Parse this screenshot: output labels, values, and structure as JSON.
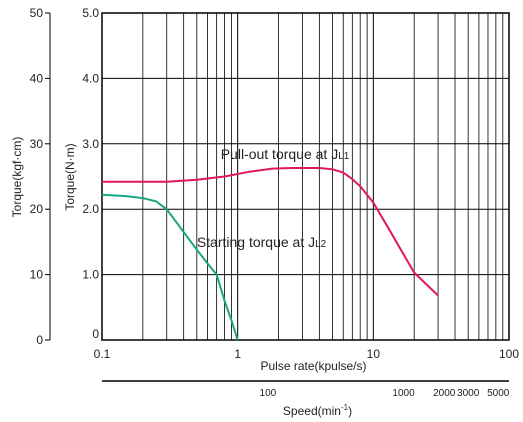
{
  "chart_data": {
    "type": "line",
    "x_scale": "log",
    "xlim": [
      0.1,
      100
    ],
    "ylim": [
      0,
      5.0
    ],
    "grid": true,
    "x_ticks": [
      {
        "value": 0.1,
        "label": "0.1"
      },
      {
        "value": 1,
        "label": "1"
      },
      {
        "value": 10,
        "label": "10"
      },
      {
        "value": 100,
        "label": "100"
      }
    ],
    "y_ticks": [
      {
        "value": 0,
        "label": "0"
      },
      {
        "value": 1.0,
        "label": "1.0"
      },
      {
        "value": 2.0,
        "label": "2.0"
      },
      {
        "value": 3.0,
        "label": "3.0"
      },
      {
        "value": 4.0,
        "label": "4.0"
      },
      {
        "value": 5.0,
        "label": "5.0"
      }
    ],
    "y2_ticks": [
      {
        "value": 0,
        "label": "0"
      },
      {
        "value": 10,
        "label": "10"
      },
      {
        "value": 20,
        "label": "20"
      },
      {
        "value": 30,
        "label": "30"
      },
      {
        "value": 40,
        "label": "40"
      },
      {
        "value": 50,
        "label": "50"
      }
    ],
    "speed_ticks": [
      {
        "pulse_rate": 1.67,
        "label": "100"
      },
      {
        "pulse_rate": 16.7,
        "label": "1000"
      },
      {
        "pulse_rate": 33.3,
        "label": "2000"
      },
      {
        "pulse_rate": 50,
        "label": "3000"
      },
      {
        "pulse_rate": 83.3,
        "label": "5000"
      }
    ],
    "xlabel": "Pulse rate(kpulse/s)",
    "ylabel": {
      "main": "Torque(N·m)"
    },
    "y2label": {
      "main": "Torque(kgf·cm)"
    },
    "speed_label": {
      "main": "Speed(min",
      "sup": "-1",
      "tail": ")"
    },
    "series": [
      {
        "color": "#e0185a",
        "x": [
          0.1,
          0.2,
          0.3,
          0.5,
          0.8,
          1.2,
          1.8,
          2.5,
          4,
          5,
          6,
          7,
          8,
          10,
          13,
          20,
          30
        ],
        "y": [
          2.42,
          2.42,
          2.42,
          2.45,
          2.5,
          2.57,
          2.62,
          2.63,
          2.63,
          2.61,
          2.56,
          2.46,
          2.35,
          2.1,
          1.7,
          1.03,
          0.68
        ]
      },
      {
        "color": "#1aa585",
        "x": [
          0.1,
          0.15,
          0.2,
          0.25,
          0.3,
          0.4,
          0.5,
          0.6,
          0.7,
          0.8,
          0.9,
          1.0
        ],
        "y": [
          2.22,
          2.2,
          2.17,
          2.12,
          2.0,
          1.65,
          1.38,
          1.17,
          1.0,
          0.6,
          0.3,
          0.0
        ]
      }
    ],
    "annotations": [
      {
        "main": "Pull-out torque at J",
        "sub": "L1",
        "x": 0.75,
        "y": 2.77
      },
      {
        "main": "Starting torque at J",
        "sub": "L2",
        "x": 0.5,
        "y": 1.42
      }
    ]
  }
}
